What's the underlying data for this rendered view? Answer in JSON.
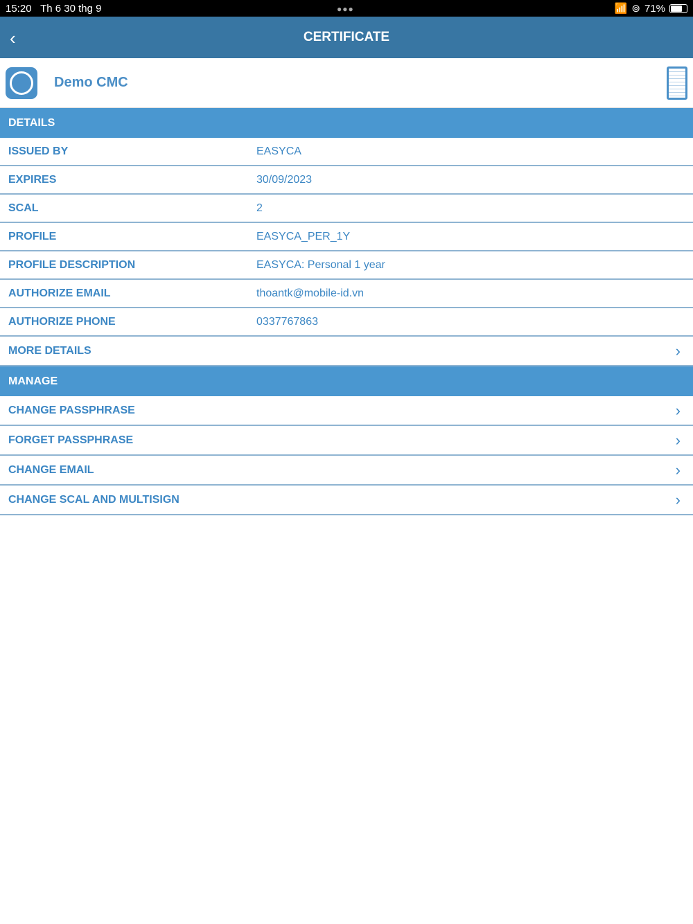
{
  "status": {
    "time": "15:20",
    "date": "Th 6 30 thg 9",
    "battery": "71%"
  },
  "nav": {
    "title": "CERTIFICATE",
    "back": "‹"
  },
  "cert": {
    "name": "Demo CMC"
  },
  "details": {
    "header": "DETAILS",
    "rows": [
      {
        "k": "ISSUED BY",
        "v": "EASYCA"
      },
      {
        "k": "EXPIRES",
        "v": "30/09/2023"
      },
      {
        "k": "SCAL",
        "v": "2"
      },
      {
        "k": "PROFILE",
        "v": "EASYCA_PER_1Y"
      },
      {
        "k": "PROFILE DESCRIPTION",
        "v": "EASYCA: Personal 1 year"
      },
      {
        "k": "AUTHORIZE EMAIL",
        "v": "thoantk@mobile-id.vn"
      },
      {
        "k": "AUTHORIZE PHONE",
        "v": "0337767863"
      }
    ],
    "more": "MORE DETAILS"
  },
  "manage": {
    "header": "MANAGE",
    "items": [
      "CHANGE PASSPHRASE",
      "FORGET PASSPHRASE",
      "CHANGE EMAIL",
      "CHANGE SCAL AND MULTISIGN"
    ]
  },
  "chevron": "›"
}
